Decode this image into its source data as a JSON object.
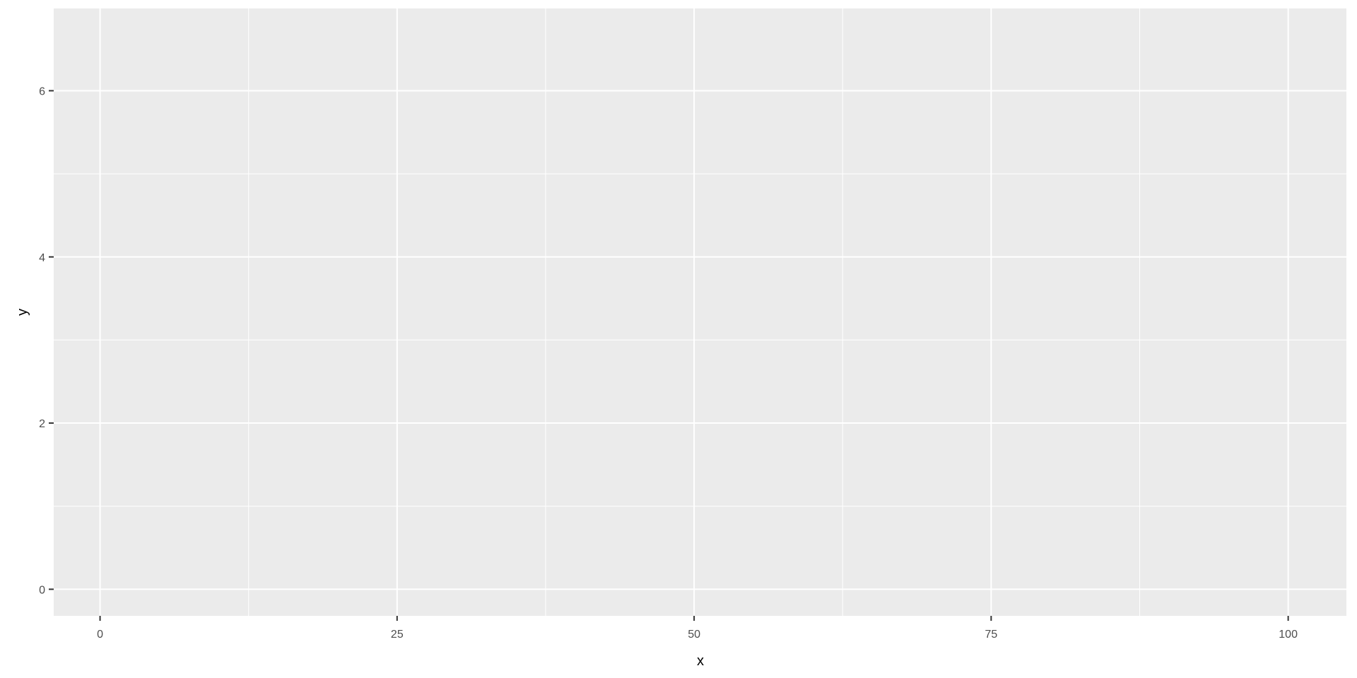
{
  "chart_data": {
    "type": "scatter",
    "title": "",
    "xlabel": "x",
    "ylabel": "y",
    "xlim": [
      -3.9,
      104.9
    ],
    "ylim": [
      -0.32,
      6.99
    ],
    "x_ticks": [
      0,
      25,
      50,
      75,
      100
    ],
    "x_tick_labels": [
      "0",
      "25",
      "50",
      "75",
      "100"
    ],
    "y_ticks": [
      0,
      2,
      4,
      6
    ],
    "y_tick_labels": [
      "0",
      "2",
      "4",
      "6"
    ],
    "grid": true,
    "series": [],
    "colors": {
      "panel": "#EBEBEB",
      "grid": "#FFFFFF",
      "tick_text": "#4D4D4D",
      "axis_title": "#000000"
    }
  }
}
